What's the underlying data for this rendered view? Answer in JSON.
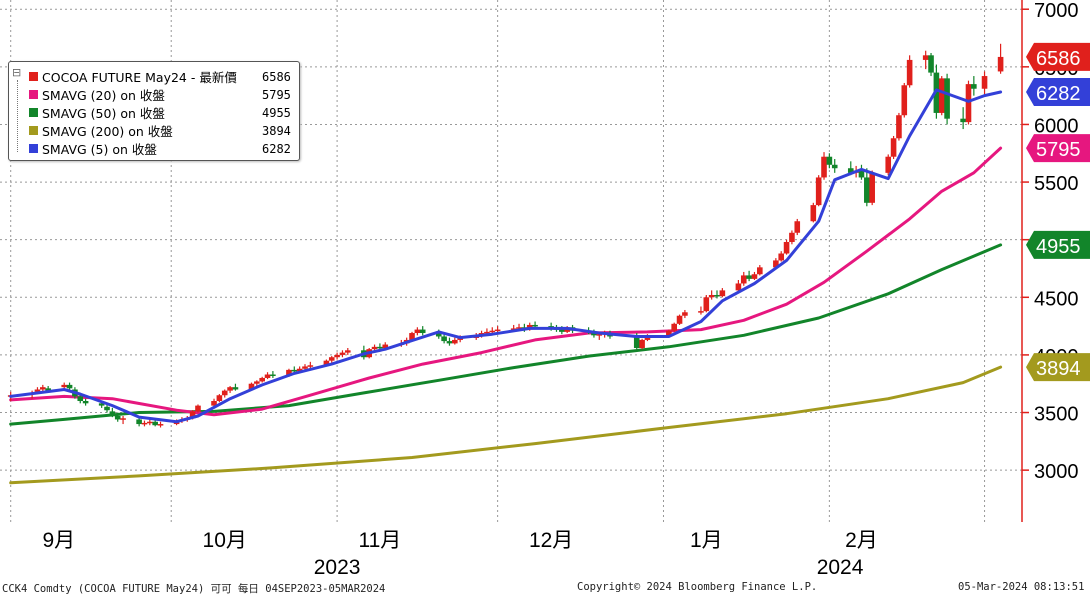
{
  "legend": {
    "collapse_symbol": "⊟",
    "items": [
      {
        "label": "COCOA FUTURE May24 - 最新價",
        "value": "6586",
        "color": "#e0201c"
      },
      {
        "label": "SMAVG (20)  on 收盤",
        "value": "5795",
        "color": "#e6177f"
      },
      {
        "label": "SMAVG (50)  on 收盤",
        "value": "4955",
        "color": "#12852a"
      },
      {
        "label": "SMAVG (200)  on 收盤",
        "value": "3894",
        "color": "#a39a1e"
      },
      {
        "label": "SMAVG (5)  on 收盤",
        "value": "6282",
        "color": "#3340d8"
      }
    ]
  },
  "footer": {
    "left": "CCK4 Comdty (COCOA FUTURE      May24) 可可  每日 04SEP2023-05MAR2024",
    "center": "Copyright© 2024 Bloomberg Finance L.P.",
    "right": "05-Mar-2024 08:13:51"
  },
  "chart_data": {
    "type": "line",
    "y_axis": {
      "side": "right",
      "ticks": [
        "7000",
        "6500",
        "6000",
        "5500",
        "5000",
        "4500",
        "4000",
        "3500",
        "3000"
      ],
      "ylim": [
        2550,
        7080
      ]
    },
    "x_axis": {
      "month_labels": [
        "9月",
        "10月",
        "11月",
        "12月",
        "1月",
        "2月"
      ],
      "year_labels": [
        "2023",
        "2024"
      ],
      "range": [
        "2023-08-30",
        "2024-03-08"
      ]
    },
    "grid": true,
    "colors": {
      "up": "#e0201c",
      "down": "#12852a"
    },
    "last_value_tags": [
      {
        "value": 6586,
        "label": "6586",
        "color": "#e0201c"
      },
      {
        "value": 6282,
        "label": "6282",
        "color": "#3340d8"
      },
      {
        "value": 5795,
        "label": "5795",
        "color": "#e6177f"
      },
      {
        "value": 4955,
        "label": "4955",
        "color": "#12852a"
      },
      {
        "value": 3894,
        "label": "3894",
        "color": "#a39a1e"
      }
    ],
    "candles": [
      [
        "2023-09-01",
        3640,
        3680,
        3600,
        3650
      ],
      [
        "2023-09-05",
        3660,
        3690,
        3620,
        3670
      ],
      [
        "2023-09-06",
        3680,
        3720,
        3660,
        3700
      ],
      [
        "2023-09-07",
        3700,
        3740,
        3680,
        3720
      ],
      [
        "2023-09-08",
        3710,
        3730,
        3680,
        3690
      ],
      [
        "2023-09-11",
        3720,
        3760,
        3710,
        3740
      ],
      [
        "2023-09-12",
        3740,
        3760,
        3700,
        3710
      ],
      [
        "2023-09-13",
        3700,
        3720,
        3620,
        3640
      ],
      [
        "2023-09-14",
        3640,
        3660,
        3580,
        3600
      ],
      [
        "2023-09-15",
        3600,
        3620,
        3560,
        3580
      ],
      [
        "2023-09-18",
        3580,
        3600,
        3540,
        3560
      ],
      [
        "2023-09-19",
        3550,
        3580,
        3500,
        3520
      ],
      [
        "2023-09-20",
        3510,
        3540,
        3460,
        3480
      ],
      [
        "2023-09-21",
        3470,
        3500,
        3420,
        3440
      ],
      [
        "2023-09-22",
        3440,
        3470,
        3400,
        3450
      ],
      [
        "2023-09-25",
        3440,
        3470,
        3380,
        3400
      ],
      [
        "2023-09-26",
        3400,
        3430,
        3380,
        3410
      ],
      [
        "2023-09-27",
        3410,
        3450,
        3390,
        3420
      ],
      [
        "2023-09-28",
        3420,
        3450,
        3380,
        3390
      ],
      [
        "2023-09-29",
        3390,
        3420,
        3370,
        3400
      ],
      [
        "2023-10-02",
        3400,
        3440,
        3390,
        3430
      ],
      [
        "2023-10-03",
        3430,
        3460,
        3410,
        3440
      ],
      [
        "2023-10-04",
        3440,
        3470,
        3420,
        3450
      ],
      [
        "2023-10-05",
        3450,
        3520,
        3440,
        3510
      ],
      [
        "2023-10-06",
        3510,
        3570,
        3500,
        3560
      ],
      [
        "2023-10-09",
        3560,
        3620,
        3550,
        3600
      ],
      [
        "2023-10-10",
        3600,
        3660,
        3590,
        3650
      ],
      [
        "2023-10-11",
        3650,
        3700,
        3630,
        3690
      ],
      [
        "2023-10-12",
        3690,
        3730,
        3670,
        3720
      ],
      [
        "2023-10-13",
        3720,
        3750,
        3690,
        3700
      ],
      [
        "2023-10-16",
        3700,
        3760,
        3690,
        3750
      ],
      [
        "2023-10-17",
        3750,
        3780,
        3730,
        3770
      ],
      [
        "2023-10-18",
        3770,
        3810,
        3760,
        3800
      ],
      [
        "2023-10-19",
        3800,
        3850,
        3790,
        3830
      ],
      [
        "2023-10-20",
        3830,
        3860,
        3800,
        3820
      ],
      [
        "2023-10-23",
        3820,
        3880,
        3810,
        3870
      ],
      [
        "2023-10-24",
        3870,
        3900,
        3840,
        3860
      ],
      [
        "2023-10-25",
        3860,
        3900,
        3840,
        3880
      ],
      [
        "2023-10-26",
        3880,
        3920,
        3860,
        3900
      ],
      [
        "2023-10-27",
        3900,
        3940,
        3880,
        3910
      ],
      [
        "2023-10-30",
        3910,
        3960,
        3900,
        3950
      ],
      [
        "2023-10-31",
        3950,
        3990,
        3930,
        3980
      ],
      [
        "2023-11-01",
        3980,
        4020,
        3960,
        4000
      ],
      [
        "2023-11-02",
        4000,
        4040,
        3980,
        4020
      ],
      [
        "2023-11-03",
        4020,
        4060,
        4000,
        4040
      ],
      [
        "2023-11-06",
        4040,
        4080,
        3960,
        3980
      ],
      [
        "2023-11-07",
        3980,
        4060,
        3970,
        4050
      ],
      [
        "2023-11-08",
        4050,
        4090,
        4030,
        4070
      ],
      [
        "2023-11-09",
        4070,
        4100,
        4040,
        4060
      ],
      [
        "2023-11-10",
        4060,
        4110,
        4050,
        4090
      ],
      [
        "2023-11-13",
        4090,
        4130,
        4070,
        4100
      ],
      [
        "2023-11-14",
        4100,
        4150,
        4080,
        4130
      ],
      [
        "2023-11-15",
        4130,
        4200,
        4120,
        4190
      ],
      [
        "2023-11-16",
        4190,
        4240,
        4170,
        4220
      ],
      [
        "2023-11-17",
        4220,
        4250,
        4170,
        4190
      ],
      [
        "2023-11-20",
        4190,
        4220,
        4140,
        4160
      ],
      [
        "2023-11-21",
        4160,
        4190,
        4100,
        4120
      ],
      [
        "2023-11-22",
        4120,
        4150,
        4080,
        4100
      ],
      [
        "2023-11-23",
        4100,
        4150,
        4090,
        4130
      ],
      [
        "2023-11-24",
        4130,
        4170,
        4110,
        4150
      ],
      [
        "2023-11-27",
        4150,
        4190,
        4130,
        4160
      ],
      [
        "2023-11-28",
        4160,
        4210,
        4150,
        4190
      ],
      [
        "2023-11-29",
        4190,
        4230,
        4170,
        4200
      ],
      [
        "2023-11-30",
        4200,
        4240,
        4180,
        4210
      ],
      [
        "2023-12-01",
        4210,
        4250,
        4190,
        4220
      ],
      [
        "2023-12-04",
        4220,
        4260,
        4200,
        4230
      ],
      [
        "2023-12-05",
        4230,
        4270,
        4210,
        4240
      ],
      [
        "2023-12-06",
        4240,
        4270,
        4200,
        4220
      ],
      [
        "2023-12-07",
        4220,
        4280,
        4210,
        4260
      ],
      [
        "2023-12-08",
        4260,
        4290,
        4230,
        4250
      ],
      [
        "2023-12-11",
        4250,
        4280,
        4210,
        4230
      ],
      [
        "2023-12-12",
        4230,
        4260,
        4200,
        4220
      ],
      [
        "2023-12-13",
        4220,
        4250,
        4180,
        4200
      ],
      [
        "2023-12-14",
        4200,
        4250,
        4190,
        4240
      ],
      [
        "2023-12-15",
        4240,
        4260,
        4190,
        4210
      ],
      [
        "2023-12-18",
        4210,
        4240,
        4180,
        4200
      ],
      [
        "2023-12-19",
        4200,
        4220,
        4150,
        4170
      ],
      [
        "2023-12-20",
        4170,
        4200,
        4130,
        4180
      ],
      [
        "2023-12-21",
        4180,
        4210,
        4150,
        4190
      ],
      [
        "2023-12-22",
        4190,
        4210,
        4140,
        4160
      ],
      [
        "2023-12-27",
        4160,
        4190,
        4040,
        4060
      ],
      [
        "2023-12-28",
        4060,
        4140,
        4050,
        4130
      ],
      [
        "2023-12-29",
        4130,
        4180,
        4120,
        4170
      ],
      [
        "2024-01-02",
        4170,
        4220,
        4160,
        4210
      ],
      [
        "2024-01-03",
        4210,
        4280,
        4200,
        4270
      ],
      [
        "2024-01-04",
        4270,
        4350,
        4260,
        4340
      ],
      [
        "2024-01-05",
        4340,
        4390,
        4320,
        4370
      ],
      [
        "2024-01-08",
        4370,
        4420,
        4350,
        4380
      ],
      [
        "2024-01-09",
        4380,
        4520,
        4370,
        4500
      ],
      [
        "2024-01-10",
        4500,
        4560,
        4480,
        4520
      ],
      [
        "2024-01-11",
        4520,
        4560,
        4490,
        4510
      ],
      [
        "2024-01-12",
        4510,
        4580,
        4500,
        4560
      ],
      [
        "2024-01-15",
        4560,
        4650,
        4550,
        4620
      ],
      [
        "2024-01-16",
        4620,
        4720,
        4600,
        4690
      ],
      [
        "2024-01-17",
        4690,
        4730,
        4640,
        4660
      ],
      [
        "2024-01-18",
        4660,
        4720,
        4650,
        4700
      ],
      [
        "2024-01-19",
        4700,
        4780,
        4690,
        4760
      ],
      [
        "2024-01-22",
        4760,
        4840,
        4750,
        4820
      ],
      [
        "2024-01-23",
        4820,
        4900,
        4810,
        4880
      ],
      [
        "2024-01-24",
        4880,
        5000,
        4870,
        4980
      ],
      [
        "2024-01-25",
        4980,
        5080,
        4960,
        5060
      ],
      [
        "2024-01-26",
        5060,
        5180,
        5040,
        5160
      ],
      [
        "2024-01-29",
        5160,
        5320,
        5150,
        5300
      ],
      [
        "2024-01-30",
        5300,
        5560,
        5290,
        5540
      ],
      [
        "2024-01-31",
        5540,
        5760,
        5520,
        5720
      ],
      [
        "2024-02-01",
        5720,
        5750,
        5620,
        5650
      ],
      [
        "2024-02-02",
        5650,
        5700,
        5580,
        5620
      ],
      [
        "2024-02-05",
        5620,
        5680,
        5560,
        5580
      ],
      [
        "2024-02-06",
        5580,
        5640,
        5540,
        5600
      ],
      [
        "2024-02-07",
        5600,
        5650,
        5520,
        5540
      ],
      [
        "2024-02-08",
        5540,
        5620,
        5290,
        5320
      ],
      [
        "2024-02-09",
        5320,
        5600,
        5300,
        5580
      ],
      [
        "2024-02-12",
        5580,
        5740,
        5560,
        5720
      ],
      [
        "2024-02-13",
        5720,
        5900,
        5700,
        5880
      ],
      [
        "2024-02-14",
        5880,
        6100,
        5860,
        6080
      ],
      [
        "2024-02-15",
        6080,
        6360,
        6060,
        6340
      ],
      [
        "2024-02-16",
        6340,
        6600,
        6320,
        6560
      ],
      [
        "2024-02-19",
        6560,
        6640,
        6480,
        6600
      ],
      [
        "2024-02-20",
        6600,
        6620,
        6420,
        6450
      ],
      [
        "2024-02-21",
        6450,
        6520,
        6050,
        6100
      ],
      [
        "2024-02-22",
        6100,
        6420,
        6080,
        6400
      ],
      [
        "2024-02-23",
        6400,
        6440,
        6000,
        6050
      ],
      [
        "2024-02-26",
        6050,
        6150,
        5960,
        6020
      ],
      [
        "2024-02-27",
        6020,
        6380,
        6000,
        6350
      ],
      [
        "2024-02-28",
        6350,
        6420,
        6250,
        6310
      ],
      [
        "2024-03-01",
        6310,
        6460,
        6250,
        6420
      ],
      [
        "2024-03-04",
        6460,
        6700,
        6440,
        6586
      ]
    ],
    "series": [
      {
        "name": "SMAVG (5)  on 收盤",
        "color": "#3340d8",
        "points": [
          [
            "2023-09-01",
            3640
          ],
          [
            "2023-09-11",
            3700
          ],
          [
            "2023-09-14",
            3660
          ],
          [
            "2023-09-20",
            3560
          ],
          [
            "2023-09-25",
            3460
          ],
          [
            "2023-10-02",
            3420
          ],
          [
            "2023-10-06",
            3470
          ],
          [
            "2023-10-12",
            3620
          ],
          [
            "2023-10-18",
            3740
          ],
          [
            "2023-10-24",
            3840
          ],
          [
            "2023-10-31",
            3920
          ],
          [
            "2023-11-06",
            4010
          ],
          [
            "2023-11-10",
            4050
          ],
          [
            "2023-11-16",
            4140
          ],
          [
            "2023-11-20",
            4200
          ],
          [
            "2023-11-24",
            4150
          ],
          [
            "2023-11-30",
            4180
          ],
          [
            "2023-12-07",
            4230
          ],
          [
            "2023-12-14",
            4230
          ],
          [
            "2023-12-20",
            4190
          ],
          [
            "2023-12-27",
            4160
          ],
          [
            "2024-01-02",
            4160
          ],
          [
            "2024-01-08",
            4290
          ],
          [
            "2024-01-12",
            4470
          ],
          [
            "2024-01-18",
            4620
          ],
          [
            "2024-01-24",
            4820
          ],
          [
            "2024-01-30",
            5160
          ],
          [
            "2024-02-02",
            5520
          ],
          [
            "2024-02-07",
            5610
          ],
          [
            "2024-02-12",
            5530
          ],
          [
            "2024-02-16",
            5900
          ],
          [
            "2024-02-21",
            6300
          ],
          [
            "2024-02-27",
            6200
          ],
          [
            "2024-03-01",
            6250
          ],
          [
            "2024-03-04",
            6282
          ]
        ]
      },
      {
        "name": "SMAVG (20)  on 收盤",
        "color": "#e6177f",
        "points": [
          [
            "2023-09-01",
            3610
          ],
          [
            "2023-09-11",
            3640
          ],
          [
            "2023-09-20",
            3620
          ],
          [
            "2023-10-02",
            3520
          ],
          [
            "2023-10-09",
            3480
          ],
          [
            "2023-10-18",
            3530
          ],
          [
            "2023-10-27",
            3650
          ],
          [
            "2023-11-07",
            3800
          ],
          [
            "2023-11-17",
            3920
          ],
          [
            "2023-11-28",
            4020
          ],
          [
            "2023-12-08",
            4130
          ],
          [
            "2023-12-18",
            4190
          ],
          [
            "2023-12-29",
            4200
          ],
          [
            "2024-01-08",
            4220
          ],
          [
            "2024-01-16",
            4300
          ],
          [
            "2024-01-24",
            4440
          ],
          [
            "2024-01-31",
            4630
          ],
          [
            "2024-02-08",
            4900
          ],
          [
            "2024-02-16",
            5180
          ],
          [
            "2024-02-22",
            5420
          ],
          [
            "2024-02-28",
            5580
          ],
          [
            "2024-03-04",
            5795
          ]
        ]
      },
      {
        "name": "SMAVG (50)  on 收盤",
        "color": "#12852a",
        "points": [
          [
            "2023-09-01",
            3400
          ],
          [
            "2023-09-11",
            3440
          ],
          [
            "2023-09-25",
            3500
          ],
          [
            "2023-10-09",
            3510
          ],
          [
            "2023-10-23",
            3560
          ],
          [
            "2023-11-06",
            3670
          ],
          [
            "2023-11-20",
            3780
          ],
          [
            "2023-12-04",
            3890
          ],
          [
            "2023-12-18",
            3990
          ],
          [
            "2024-01-02",
            4070
          ],
          [
            "2024-01-16",
            4170
          ],
          [
            "2024-01-30",
            4320
          ],
          [
            "2024-02-12",
            4530
          ],
          [
            "2024-02-22",
            4740
          ],
          [
            "2024-03-04",
            4955
          ]
        ]
      },
      {
        "name": "SMAVG (200)  on 收盤",
        "color": "#a39a1e",
        "points": [
          [
            "2023-09-01",
            2890
          ],
          [
            "2023-09-25",
            2950
          ],
          [
            "2023-10-20",
            3020
          ],
          [
            "2023-11-15",
            3110
          ],
          [
            "2023-12-08",
            3230
          ],
          [
            "2024-01-02",
            3370
          ],
          [
            "2024-01-24",
            3490
          ],
          [
            "2024-02-12",
            3620
          ],
          [
            "2024-02-26",
            3760
          ],
          [
            "2024-03-04",
            3894
          ]
        ]
      }
    ]
  }
}
